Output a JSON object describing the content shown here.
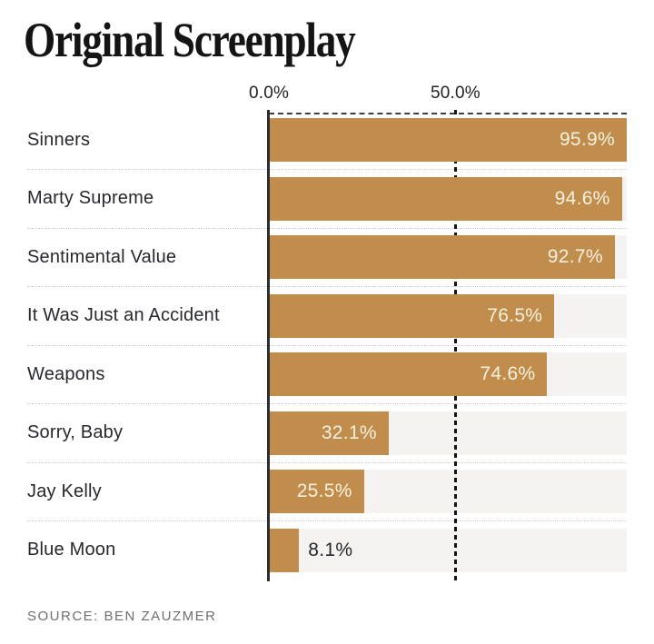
{
  "title": "Original Screenplay",
  "source": "SOURCE: BEN ZAUZMER",
  "chart_data": {
    "type": "bar",
    "orientation": "horizontal",
    "title": "Original Screenplay",
    "categories": [
      "Sinners",
      "Marty Supreme",
      "Sentimental Value",
      "It Was Just an Accident",
      "Weapons",
      "Sorry, Baby",
      "Jay Kelly",
      "Blue Moon"
    ],
    "values": [
      95.9,
      94.6,
      92.7,
      76.5,
      74.6,
      32.1,
      25.5,
      8.1
    ],
    "value_labels": [
      "95.9%",
      "94.6%",
      "92.7%",
      "76.5%",
      "74.6%",
      "32.1%",
      "25.5%",
      "8.1%"
    ],
    "xlabel": "",
    "ylabel": "",
    "xlim": [
      0,
      95.9
    ],
    "x_ticks": [
      {
        "label": "0.0%",
        "value": 0
      },
      {
        "label": "50.0%",
        "value": 50
      }
    ],
    "gridline_value": 50,
    "gridline_style": "dashed",
    "legend": "none",
    "source": "SOURCE: BEN ZAUZMER"
  },
  "colors": {
    "bar": "#C08D4C",
    "track": "#F4F3F2",
    "value_label_inside": "#F8F1DF",
    "value_label_outside": "#26282B",
    "text": "#26282B",
    "title_text": "#141414",
    "separator": "#CBCFD6",
    "zero_axis_line": "#2E2E2E",
    "gridline": "#141414",
    "source_text": "#6F6F6F",
    "background": "#FFFFFF"
  }
}
